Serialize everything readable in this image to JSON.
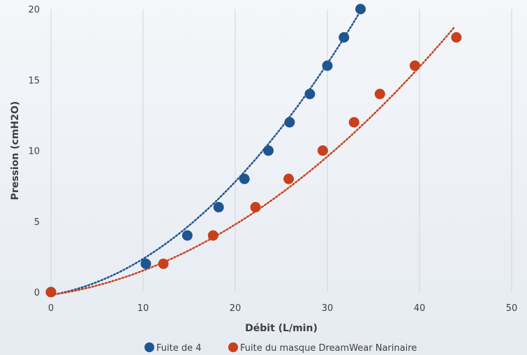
{
  "chart_data": {
    "type": "scatter",
    "xlabel": "Débit (L/min)",
    "ylabel": "Pression (cmH2O)",
    "xlim": [
      0,
      50
    ],
    "ylim": [
      0,
      20
    ],
    "x_ticks": [
      0,
      10,
      20,
      30,
      40,
      50
    ],
    "y_ticks": [
      0,
      5,
      10,
      15,
      20
    ],
    "grid": "vertical",
    "legend_position": "bottom",
    "trendline": "polynomial, dotted",
    "series": [
      {
        "name": "Fuite de 4",
        "color": "#1f5591",
        "points": [
          {
            "x": 0,
            "y": 0
          },
          {
            "x": 10.3,
            "y": 2
          },
          {
            "x": 14.8,
            "y": 4
          },
          {
            "x": 18.2,
            "y": 6
          },
          {
            "x": 21,
            "y": 8
          },
          {
            "x": 23.6,
            "y": 10
          },
          {
            "x": 25.9,
            "y": 12
          },
          {
            "x": 28.1,
            "y": 14
          },
          {
            "x": 30,
            "y": 16
          },
          {
            "x": 31.8,
            "y": 18
          },
          {
            "x": 33.6,
            "y": 20
          }
        ],
        "trend": {
          "a": 0.0145,
          "b": 0.11,
          "c": -0.2,
          "x_end": 33.6
        }
      },
      {
        "name": "Fuite du masque DreamWear Narinaire",
        "color": "#c8401c",
        "points": [
          {
            "x": 0,
            "y": 0
          },
          {
            "x": 12.2,
            "y": 2
          },
          {
            "x": 17.6,
            "y": 4
          },
          {
            "x": 22.2,
            "y": 6
          },
          {
            "x": 25.8,
            "y": 8
          },
          {
            "x": 29.5,
            "y": 10
          },
          {
            "x": 32.9,
            "y": 12
          },
          {
            "x": 35.7,
            "y": 14
          },
          {
            "x": 39.5,
            "y": 16
          },
          {
            "x": 44,
            "y": 18
          }
        ],
        "trend": {
          "a": 0.0077,
          "b": 0.095,
          "c": -0.2,
          "x_end": 43.8
        }
      }
    ]
  }
}
